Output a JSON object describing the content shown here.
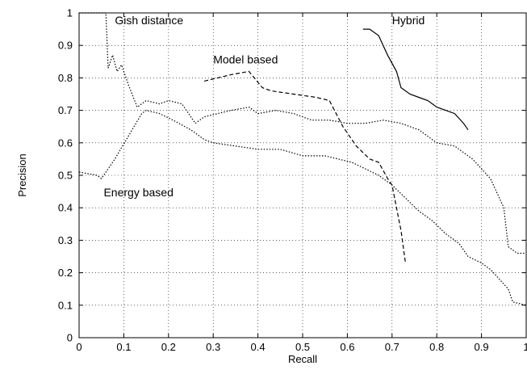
{
  "chart_data": {
    "type": "line",
    "title": "",
    "xlabel": "Recall",
    "ylabel": "Precision",
    "xlim": [
      0,
      1
    ],
    "ylim": [
      0,
      1
    ],
    "x_ticks": [
      "0",
      "0.1",
      "0.2",
      "0.3",
      "0.4",
      "0.5",
      "0.6",
      "0.7",
      "0.8",
      "0.9",
      "1"
    ],
    "y_ticks": [
      "0",
      "0.1",
      "0.2",
      "0.3",
      "0.4",
      "0.5",
      "0.6",
      "0.7",
      "0.8",
      "0.9",
      "1"
    ],
    "grid": true,
    "legend": "none (series labeled by annotations)",
    "series": [
      {
        "name": "Gish distance",
        "style": "dotted",
        "points": [
          [
            0.0,
            1.0
          ],
          [
            0.06,
            1.0
          ],
          [
            0.065,
            0.83
          ],
          [
            0.075,
            0.87
          ],
          [
            0.085,
            0.82
          ],
          [
            0.095,
            0.84
          ],
          [
            0.11,
            0.78
          ],
          [
            0.13,
            0.71
          ],
          [
            0.15,
            0.73
          ],
          [
            0.18,
            0.72
          ],
          [
            0.2,
            0.73
          ],
          [
            0.23,
            0.72
          ],
          [
            0.26,
            0.66
          ],
          [
            0.28,
            0.68
          ],
          [
            0.31,
            0.69
          ],
          [
            0.34,
            0.7
          ],
          [
            0.38,
            0.71
          ],
          [
            0.4,
            0.69
          ],
          [
            0.44,
            0.7
          ],
          [
            0.48,
            0.69
          ],
          [
            0.52,
            0.67
          ],
          [
            0.56,
            0.67
          ],
          [
            0.6,
            0.66
          ],
          [
            0.64,
            0.66
          ],
          [
            0.68,
            0.67
          ],
          [
            0.72,
            0.66
          ],
          [
            0.76,
            0.64
          ],
          [
            0.8,
            0.6
          ],
          [
            0.84,
            0.59
          ],
          [
            0.88,
            0.55
          ],
          [
            0.92,
            0.49
          ],
          [
            0.95,
            0.4
          ],
          [
            0.96,
            0.28
          ],
          [
            0.98,
            0.26
          ],
          [
            1.0,
            0.26
          ]
        ]
      },
      {
        "name": "Model based",
        "style": "dashed",
        "points": [
          [
            0.28,
            0.79
          ],
          [
            0.34,
            0.81
          ],
          [
            0.38,
            0.82
          ],
          [
            0.41,
            0.77
          ],
          [
            0.43,
            0.76
          ],
          [
            0.48,
            0.75
          ],
          [
            0.53,
            0.74
          ],
          [
            0.56,
            0.73
          ],
          [
            0.59,
            0.65
          ],
          [
            0.62,
            0.59
          ],
          [
            0.65,
            0.55
          ],
          [
            0.67,
            0.54
          ],
          [
            0.69,
            0.49
          ],
          [
            0.7,
            0.47
          ],
          [
            0.71,
            0.4
          ],
          [
            0.72,
            0.33
          ],
          [
            0.73,
            0.23
          ]
        ]
      },
      {
        "name": "Hybrid",
        "style": "solid",
        "points": [
          [
            0.635,
            0.95
          ],
          [
            0.65,
            0.95
          ],
          [
            0.67,
            0.93
          ],
          [
            0.69,
            0.87
          ],
          [
            0.71,
            0.82
          ],
          [
            0.72,
            0.77
          ],
          [
            0.74,
            0.75
          ],
          [
            0.76,
            0.74
          ],
          [
            0.78,
            0.73
          ],
          [
            0.8,
            0.71
          ],
          [
            0.82,
            0.7
          ],
          [
            0.84,
            0.69
          ],
          [
            0.86,
            0.66
          ],
          [
            0.87,
            0.64
          ]
        ]
      },
      {
        "name": "Energy based",
        "style": "dotted",
        "points": [
          [
            0.0,
            0.51
          ],
          [
            0.04,
            0.5
          ],
          [
            0.05,
            0.49
          ],
          [
            0.08,
            0.55
          ],
          [
            0.11,
            0.62
          ],
          [
            0.14,
            0.69
          ],
          [
            0.15,
            0.7
          ],
          [
            0.18,
            0.69
          ],
          [
            0.21,
            0.67
          ],
          [
            0.25,
            0.64
          ],
          [
            0.28,
            0.61
          ],
          [
            0.3,
            0.6
          ],
          [
            0.35,
            0.59
          ],
          [
            0.4,
            0.58
          ],
          [
            0.45,
            0.58
          ],
          [
            0.5,
            0.56
          ],
          [
            0.55,
            0.56
          ],
          [
            0.58,
            0.55
          ],
          [
            0.61,
            0.54
          ],
          [
            0.64,
            0.52
          ],
          [
            0.67,
            0.5
          ],
          [
            0.7,
            0.47
          ],
          [
            0.73,
            0.43
          ],
          [
            0.76,
            0.39
          ],
          [
            0.79,
            0.36
          ],
          [
            0.82,
            0.32
          ],
          [
            0.85,
            0.29
          ],
          [
            0.87,
            0.25
          ],
          [
            0.9,
            0.23
          ],
          [
            0.92,
            0.21
          ],
          [
            0.94,
            0.18
          ],
          [
            0.96,
            0.15
          ],
          [
            0.97,
            0.11
          ],
          [
            1.0,
            0.1
          ]
        ]
      }
    ],
    "annotations": [
      {
        "text": "Gish distance",
        "series": 0,
        "at": [
          0.08,
          0.965
        ]
      },
      {
        "text": "Model based",
        "series": 1,
        "at": [
          0.3,
          0.845
        ]
      },
      {
        "text": "Hybrid",
        "series": 2,
        "at": [
          0.7,
          0.965
        ]
      },
      {
        "text": "Energy based",
        "series": 3,
        "at": [
          0.055,
          0.435
        ]
      }
    ]
  }
}
